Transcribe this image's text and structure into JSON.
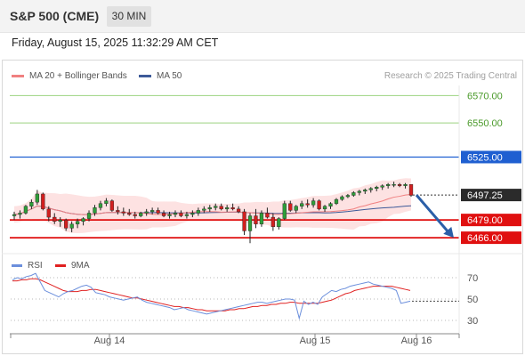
{
  "header": {
    "title": "S&P 500 (CME)",
    "interval": "30 MIN"
  },
  "timestamp": "Friday, August 15, 2025 11:32:29 AM CET",
  "legend": {
    "ma_bb": "MA 20 + Bollinger Bands",
    "ma50": "MA 50",
    "rsi": "RSI",
    "nine_ma": "9MA"
  },
  "credit": "Research © 2025 Trading Central",
  "colors": {
    "ma20": "#f08080",
    "ma50": "#3d5a99",
    "bb_fill": "#fde2e2",
    "bull": "#2e9e3a",
    "bear": "#d11f1f",
    "resistance": "#9bd27f",
    "pivot": "#1f5fd1",
    "support": "#e01010",
    "arrow": "#2b5fa8",
    "rsi": "#6b8fdc",
    "rsi_ma": "#e02020"
  },
  "chart_data": [
    {
      "type": "candlestick",
      "title": "",
      "x_labels": [
        "Aug 14",
        "Aug 15",
        "Aug 16"
      ],
      "ylim": [
        6455,
        6580
      ],
      "levels": [
        {
          "label": "6570.00",
          "value": 6570,
          "kind": "resistance"
        },
        {
          "label": "6550.00",
          "value": 6550,
          "kind": "resistance"
        },
        {
          "label": "6525.00",
          "value": 6525,
          "kind": "pivot"
        },
        {
          "label": "6479.00",
          "value": 6479,
          "kind": "support"
        },
        {
          "label": "6466.00",
          "value": 6466,
          "kind": "support"
        }
      ],
      "last_price": {
        "label": "6497.25",
        "value": 6497.25
      },
      "forecast": {
        "from": 6497.25,
        "to": 6466
      },
      "candles": [
        [
          6482,
          6485,
          6479,
          6483
        ],
        [
          6483,
          6486,
          6480,
          6484
        ],
        [
          6484,
          6490,
          6483,
          6489
        ],
        [
          6489,
          6494,
          6487,
          6492
        ],
        [
          6492,
          6501,
          6490,
          6498
        ],
        [
          6498,
          6499,
          6486,
          6487
        ],
        [
          6487,
          6489,
          6478,
          6481
        ],
        [
          6481,
          6484,
          6476,
          6478
        ],
        [
          6478,
          6481,
          6474,
          6479
        ],
        [
          6479,
          6480,
          6471,
          6473
        ],
        [
          6473,
          6478,
          6470,
          6476
        ],
        [
          6476,
          6480,
          6473,
          6478
        ],
        [
          6478,
          6481,
          6475,
          6480
        ],
        [
          6480,
          6486,
          6478,
          6484
        ],
        [
          6484,
          6490,
          6482,
          6488
        ],
        [
          6488,
          6493,
          6486,
          6491
        ],
        [
          6491,
          6495,
          6489,
          6493
        ],
        [
          6493,
          6494,
          6485,
          6486
        ],
        [
          6486,
          6489,
          6483,
          6485
        ],
        [
          6485,
          6488,
          6482,
          6484
        ],
        [
          6484,
          6487,
          6482,
          6483
        ],
        [
          6483,
          6485,
          6480,
          6482
        ],
        [
          6482,
          6485,
          6481,
          6484
        ],
        [
          6484,
          6487,
          6482,
          6485
        ],
        [
          6485,
          6488,
          6483,
          6486
        ],
        [
          6486,
          6488,
          6483,
          6484
        ],
        [
          6484,
          6486,
          6481,
          6482
        ],
        [
          6482,
          6485,
          6480,
          6483
        ],
        [
          6483,
          6486,
          6481,
          6484
        ],
        [
          6484,
          6486,
          6481,
          6482
        ],
        [
          6482,
          6485,
          6480,
          6483
        ],
        [
          6483,
          6486,
          6481,
          6484
        ],
        [
          6484,
          6488,
          6482,
          6486
        ],
        [
          6486,
          6489,
          6484,
          6487
        ],
        [
          6487,
          6490,
          6485,
          6488
        ],
        [
          6488,
          6491,
          6486,
          6489
        ],
        [
          6489,
          6491,
          6486,
          6487
        ],
        [
          6487,
          6490,
          6485,
          6488
        ],
        [
          6488,
          6491,
          6486,
          6487
        ],
        [
          6487,
          6489,
          6484,
          6485
        ],
        [
          6485,
          6487,
          6468,
          6471
        ],
        [
          6471,
          6484,
          6462,
          6482
        ],
        [
          6482,
          6487,
          6473,
          6476
        ],
        [
          6476,
          6486,
          6474,
          6484
        ],
        [
          6484,
          6488,
          6480,
          6481
        ],
        [
          6481,
          6484,
          6471,
          6474
        ],
        [
          6474,
          6481,
          6472,
          6480
        ],
        [
          6480,
          6493,
          6479,
          6491
        ],
        [
          6491,
          6493,
          6485,
          6486
        ],
        [
          6486,
          6490,
          6484,
          6489
        ],
        [
          6489,
          6493,
          6487,
          6491
        ],
        [
          6491,
          6494,
          6488,
          6490
        ],
        [
          6490,
          6495,
          6488,
          6493
        ],
        [
          6493,
          6494,
          6486,
          6487
        ],
        [
          6487,
          6490,
          6485,
          6489
        ],
        [
          6489,
          6492,
          6487,
          6491
        ],
        [
          6491,
          6495,
          6490,
          6494
        ],
        [
          6494,
          6497,
          6493,
          6496
        ],
        [
          6496,
          6498,
          6495,
          6497
        ],
        [
          6497,
          6500,
          6496,
          6499
        ],
        [
          6499,
          6501,
          6497,
          6500
        ],
        [
          6500,
          6502,
          6498,
          6501
        ],
        [
          6501,
          6503,
          6499,
          6502
        ],
        [
          6502,
          6504,
          6500,
          6503
        ],
        [
          6503,
          6505,
          6501,
          6504
        ],
        [
          6504,
          6506,
          6502,
          6505
        ],
        [
          6505,
          6507,
          6503,
          6505
        ],
        [
          6505,
          6506,
          6503,
          6504
        ],
        [
          6504,
          6506,
          6502,
          6505
        ],
        [
          6505,
          6505,
          6496,
          6497
        ]
      ]
    },
    {
      "type": "line",
      "title": "RSI",
      "ylim": [
        20,
        80
      ],
      "ticks": [
        70,
        50,
        30
      ],
      "series": [
        {
          "name": "RSI",
          "values": [
            68,
            70,
            69,
            71,
            72,
            74,
            66,
            58,
            56,
            54,
            52,
            55,
            57,
            58,
            60,
            62,
            63,
            61,
            56,
            55,
            54,
            52,
            51,
            50,
            49,
            50,
            51,
            52,
            49,
            47,
            46,
            45,
            44,
            43,
            42,
            40,
            41,
            42,
            40,
            39,
            38,
            37,
            36,
            37,
            38,
            39,
            40,
            41,
            42,
            43,
            44,
            45,
            46,
            47,
            47,
            46,
            47,
            48,
            49,
            50,
            50,
            49,
            32,
            48,
            45,
            47,
            45,
            52,
            55,
            58,
            57,
            59,
            60,
            62,
            63,
            64,
            65,
            66,
            64,
            63,
            62,
            61,
            60,
            58,
            46,
            47,
            48
          ]
        },
        {
          "name": "9MA",
          "values": [
            67,
            67,
            68,
            68,
            69,
            69,
            68,
            66,
            64,
            62,
            60,
            58,
            57,
            57,
            57,
            58,
            58,
            59,
            59,
            58,
            57,
            56,
            55,
            54,
            53,
            52,
            51,
            51,
            50,
            49,
            48,
            47,
            46,
            45,
            44,
            43,
            43,
            42,
            42,
            41,
            40,
            40,
            39,
            39,
            39,
            39,
            39,
            40,
            40,
            41,
            41,
            42,
            43,
            43,
            44,
            44,
            45,
            45,
            46,
            46,
            47,
            47,
            46,
            46,
            46,
            46,
            46,
            47,
            48,
            49,
            51,
            53,
            55,
            56,
            58,
            59,
            60,
            61,
            62,
            62,
            62,
            62,
            62,
            61,
            60,
            59,
            58
          ]
        }
      ]
    }
  ]
}
